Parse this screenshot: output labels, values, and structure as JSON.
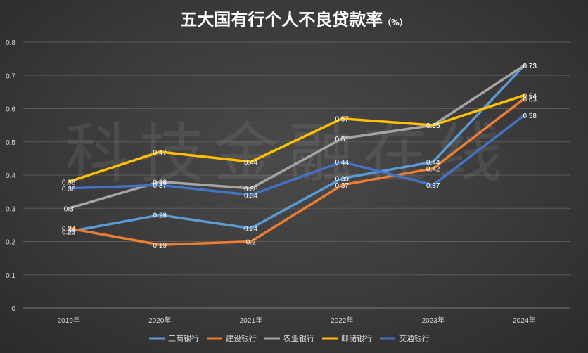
{
  "chart_data": {
    "type": "line",
    "title": "五大国有行个人不良贷款率",
    "title_unit": "（%）",
    "watermark": "科技金融在线",
    "categories": [
      "2019年",
      "2020年",
      "2021年",
      "2022年",
      "2023年",
      "2024年"
    ],
    "ylim": [
      0,
      0.8
    ],
    "yticks": [
      "0",
      "0.1",
      "0.2",
      "0.3",
      "0.4",
      "0.5",
      "0.6",
      "0.7",
      "0.8"
    ],
    "grid": true,
    "legend_position": "bottom",
    "series": [
      {
        "name": "工商银行",
        "color": "#5b9bd5",
        "values": [
          0.23,
          0.28,
          0.24,
          0.39,
          0.44,
          0.73
        ],
        "labels": [
          "0.23",
          "0.28",
          "0.24",
          "0.39",
          "0.44",
          "0.73"
        ]
      },
      {
        "name": "建设银行",
        "color": "#ed7d31",
        "values": [
          0.24,
          0.19,
          0.2,
          0.37,
          0.42,
          0.63
        ],
        "labels": [
          "0.24",
          "0.19",
          "0.2",
          "0.37",
          "0.42",
          "0.63"
        ]
      },
      {
        "name": "农业银行",
        "color": "#a5a5a5",
        "values": [
          0.3,
          0.38,
          0.36,
          0.51,
          0.55,
          0.73
        ],
        "labels": [
          "0.3",
          "0.38",
          "0.36",
          "0.51",
          "0.55",
          "0.73"
        ]
      },
      {
        "name": "邮储银行",
        "color": "#ffc000",
        "values": [
          0.38,
          0.47,
          0.44,
          0.57,
          0.55,
          0.64
        ],
        "labels": [
          "0.38",
          "0.47",
          "0.44",
          "0.57",
          "0.55",
          "0.64"
        ]
      },
      {
        "name": "交通银行",
        "color": "#4472c4",
        "values": [
          0.36,
          0.37,
          0.34,
          0.44,
          0.37,
          0.58
        ],
        "labels": [
          "0.36",
          "0.37",
          "0.34",
          "0.44",
          "0.37",
          "0.58"
        ]
      }
    ]
  }
}
